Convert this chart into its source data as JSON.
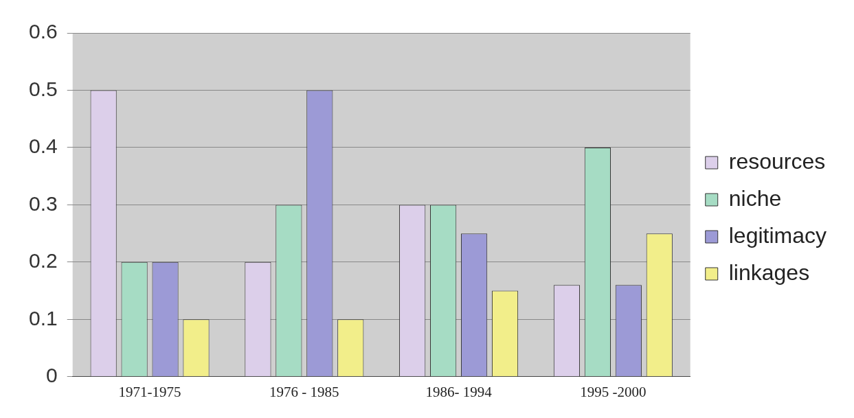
{
  "chart_data": {
    "type": "bar",
    "categories": [
      "1971-1975",
      "1976 - 1985",
      "1986- 1994",
      "1995 -2000"
    ],
    "series": [
      {
        "name": "resources",
        "color": "#dccfea",
        "values": [
          0.5,
          0.2,
          0.3,
          0.16
        ]
      },
      {
        "name": "niche",
        "color": "#a6dcc4",
        "values": [
          0.2,
          0.3,
          0.3,
          0.4
        ]
      },
      {
        "name": "legitimacy",
        "color": "#9c9ad6",
        "values": [
          0.2,
          0.5,
          0.25,
          0.16
        ]
      },
      {
        "name": "linkages",
        "color": "#f2ee8a",
        "values": [
          0.1,
          0.1,
          0.15,
          0.25
        ]
      }
    ],
    "ylim": [
      0,
      0.6
    ],
    "yticks": [
      0,
      0.1,
      0.2,
      0.3,
      0.4,
      0.5,
      0.6
    ],
    "grid": "y",
    "legend": "right"
  }
}
